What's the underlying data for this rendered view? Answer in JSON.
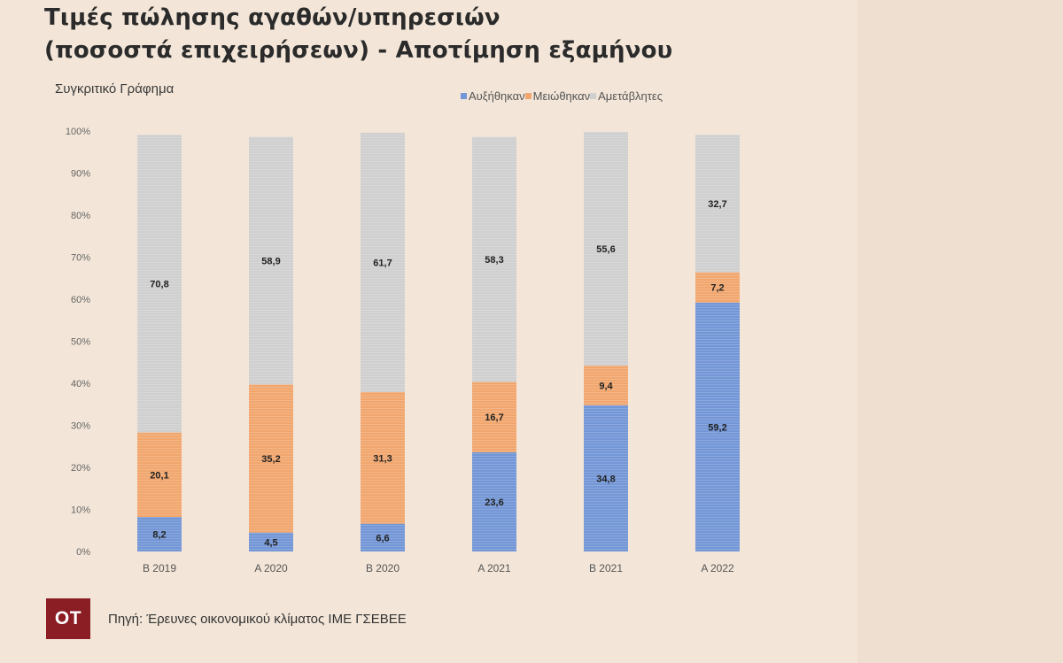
{
  "colors": {
    "increased": "#7396d6",
    "decreased": "#f1a66e",
    "unchanged": "#cfcfcf",
    "logo_bg": "#8b1e24"
  },
  "logo": {
    "text": "OT"
  },
  "source": "Πηγή: Έρευνες οικονομικού κλίματος ΙΜΕ ΓΣΕΒΕΕ",
  "chart_data": {
    "type": "bar",
    "stacked": true,
    "title": [
      "Τιμές πώλησης αγαθών/υπηρεσιών",
      "(ποσοστά επιχειρήσεων) - Αποτίμηση εξαμήνου"
    ],
    "subtitle": "Συγκριτικό Γράφημα",
    "legend_position": "top-right",
    "categories": [
      "B 2019",
      "A 2020",
      "B 2020",
      "A 2021",
      "B 2021",
      "A 2022"
    ],
    "series": [
      {
        "name": "Αυξήθηκαν",
        "values": [
          8.2,
          4.5,
          6.6,
          23.6,
          34.8,
          59.2
        ],
        "labels": [
          "8,2",
          "4,5",
          "6,6",
          "23,6",
          "34,8",
          "59,2"
        ]
      },
      {
        "name": "Μειώθηκαν",
        "values": [
          20.1,
          35.2,
          31.3,
          16.7,
          9.4,
          7.2
        ],
        "labels": [
          "20,1",
          "35,2",
          "31,3",
          "16,7",
          "9,4",
          "7,2"
        ]
      },
      {
        "name": "Αμετάβλητες",
        "values": [
          70.8,
          58.9,
          61.7,
          58.3,
          55.6,
          32.7
        ],
        "labels": [
          "70,8",
          "58,9",
          "61,7",
          "58,3",
          "55,6",
          "32,7"
        ]
      }
    ],
    "yticks": [
      "0%",
      "10%",
      "20%",
      "30%",
      "40%",
      "50%",
      "60%",
      "70%",
      "80%",
      "90%",
      "100%"
    ],
    "ylim": [
      0,
      100
    ],
    "grid": false
  }
}
